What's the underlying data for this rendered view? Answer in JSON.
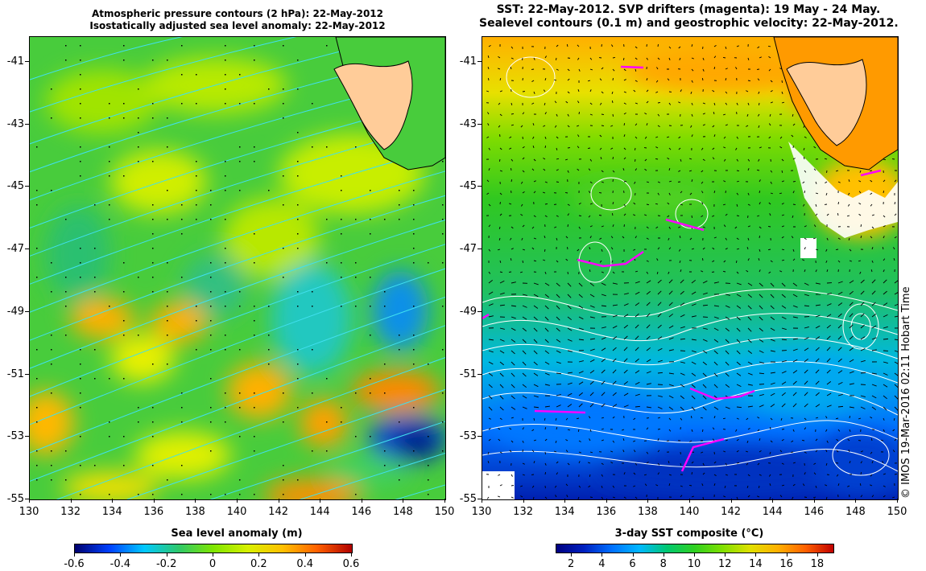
{
  "left_panel": {
    "title_line1": "Atmospheric pressure contours (2 hPa): 22-May-2012",
    "title_line2": "Isostatically adjusted sea level anomaly: 22-May-2012",
    "xticks": [
      "130",
      "132",
      "134",
      "136",
      "138",
      "140",
      "142",
      "144",
      "146",
      "148",
      "150"
    ],
    "yticks": [
      "-41",
      "-43",
      "-45",
      "-47",
      "-49",
      "-51",
      "-53",
      "-55"
    ],
    "colorbar_label": "Sea level anomaly (m)",
    "colorbar_ticks": [
      "-0.6",
      "-0.4",
      "-0.2",
      "0",
      "0.2",
      "0.4",
      "0.6"
    ],
    "contour_color": "#40e0f0"
  },
  "right_panel": {
    "title_line1": "SST: 22-May-2012. SVP drifters (magenta): 19 May - 24 May.",
    "title_line2": "Sealevel contours (0.1 m) and geostrophic velocity: 22-May-2012.",
    "xticks": [
      "130",
      "132",
      "134",
      "136",
      "138",
      "140",
      "142",
      "144",
      "146",
      "148",
      "150"
    ],
    "yticks": [
      "-41",
      "-43",
      "-45",
      "-47",
      "-49",
      "-51",
      "-53",
      "-55"
    ],
    "colorbar_label": "3-day SST composite (°C)",
    "colorbar_ticks": [
      "2",
      "4",
      "6",
      "8",
      "10",
      "12",
      "14",
      "16",
      "18"
    ],
    "drifter_color": "#ff00ff"
  },
  "credit": "© IMOS 19-Mar-2016 02:11 Hobart Time",
  "land_color": "#ffcc99",
  "sla_colormap": [
    "#00006e",
    "#0040ff",
    "#00c8ff",
    "#2ec86a",
    "#7fe600",
    "#d8f000",
    "#ffc000",
    "#ff6000",
    "#b00000"
  ],
  "sst_colormap": [
    "#000080",
    "#0020c0",
    "#0070ff",
    "#00b8ff",
    "#00c870",
    "#30d020",
    "#80e000",
    "#e0e000",
    "#ffb000",
    "#ff6000",
    "#c00000"
  ]
}
